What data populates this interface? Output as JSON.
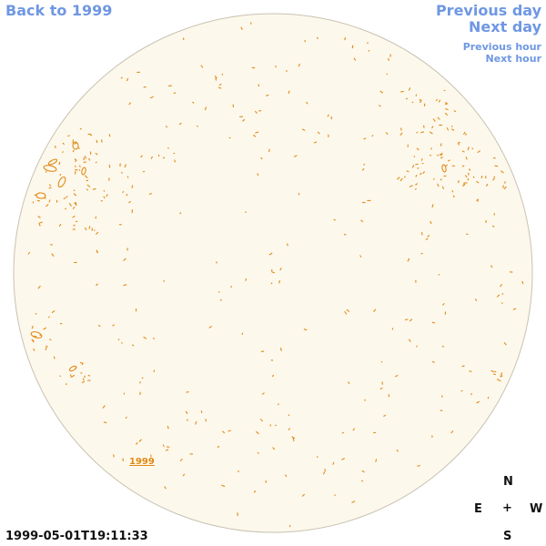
{
  "nav": {
    "back_label": "Back to 1999",
    "previous_day_label": "Previous day",
    "next_day_label": "Next day",
    "previous_hour_label": "Previous hour",
    "next_hour_label": "Next hour"
  },
  "compass": {
    "north": "N",
    "south": "S",
    "east": "E",
    "west": "W",
    "center": "+"
  },
  "timestamp": "1999-05-01T19:11:33",
  "region_link_label": "1999",
  "colors": {
    "link": "#6f97e3",
    "disk_fill": "#fdf8ec",
    "disk_stroke": "#c8c2b2",
    "contour": "#e08a16",
    "text": "#111111"
  }
}
